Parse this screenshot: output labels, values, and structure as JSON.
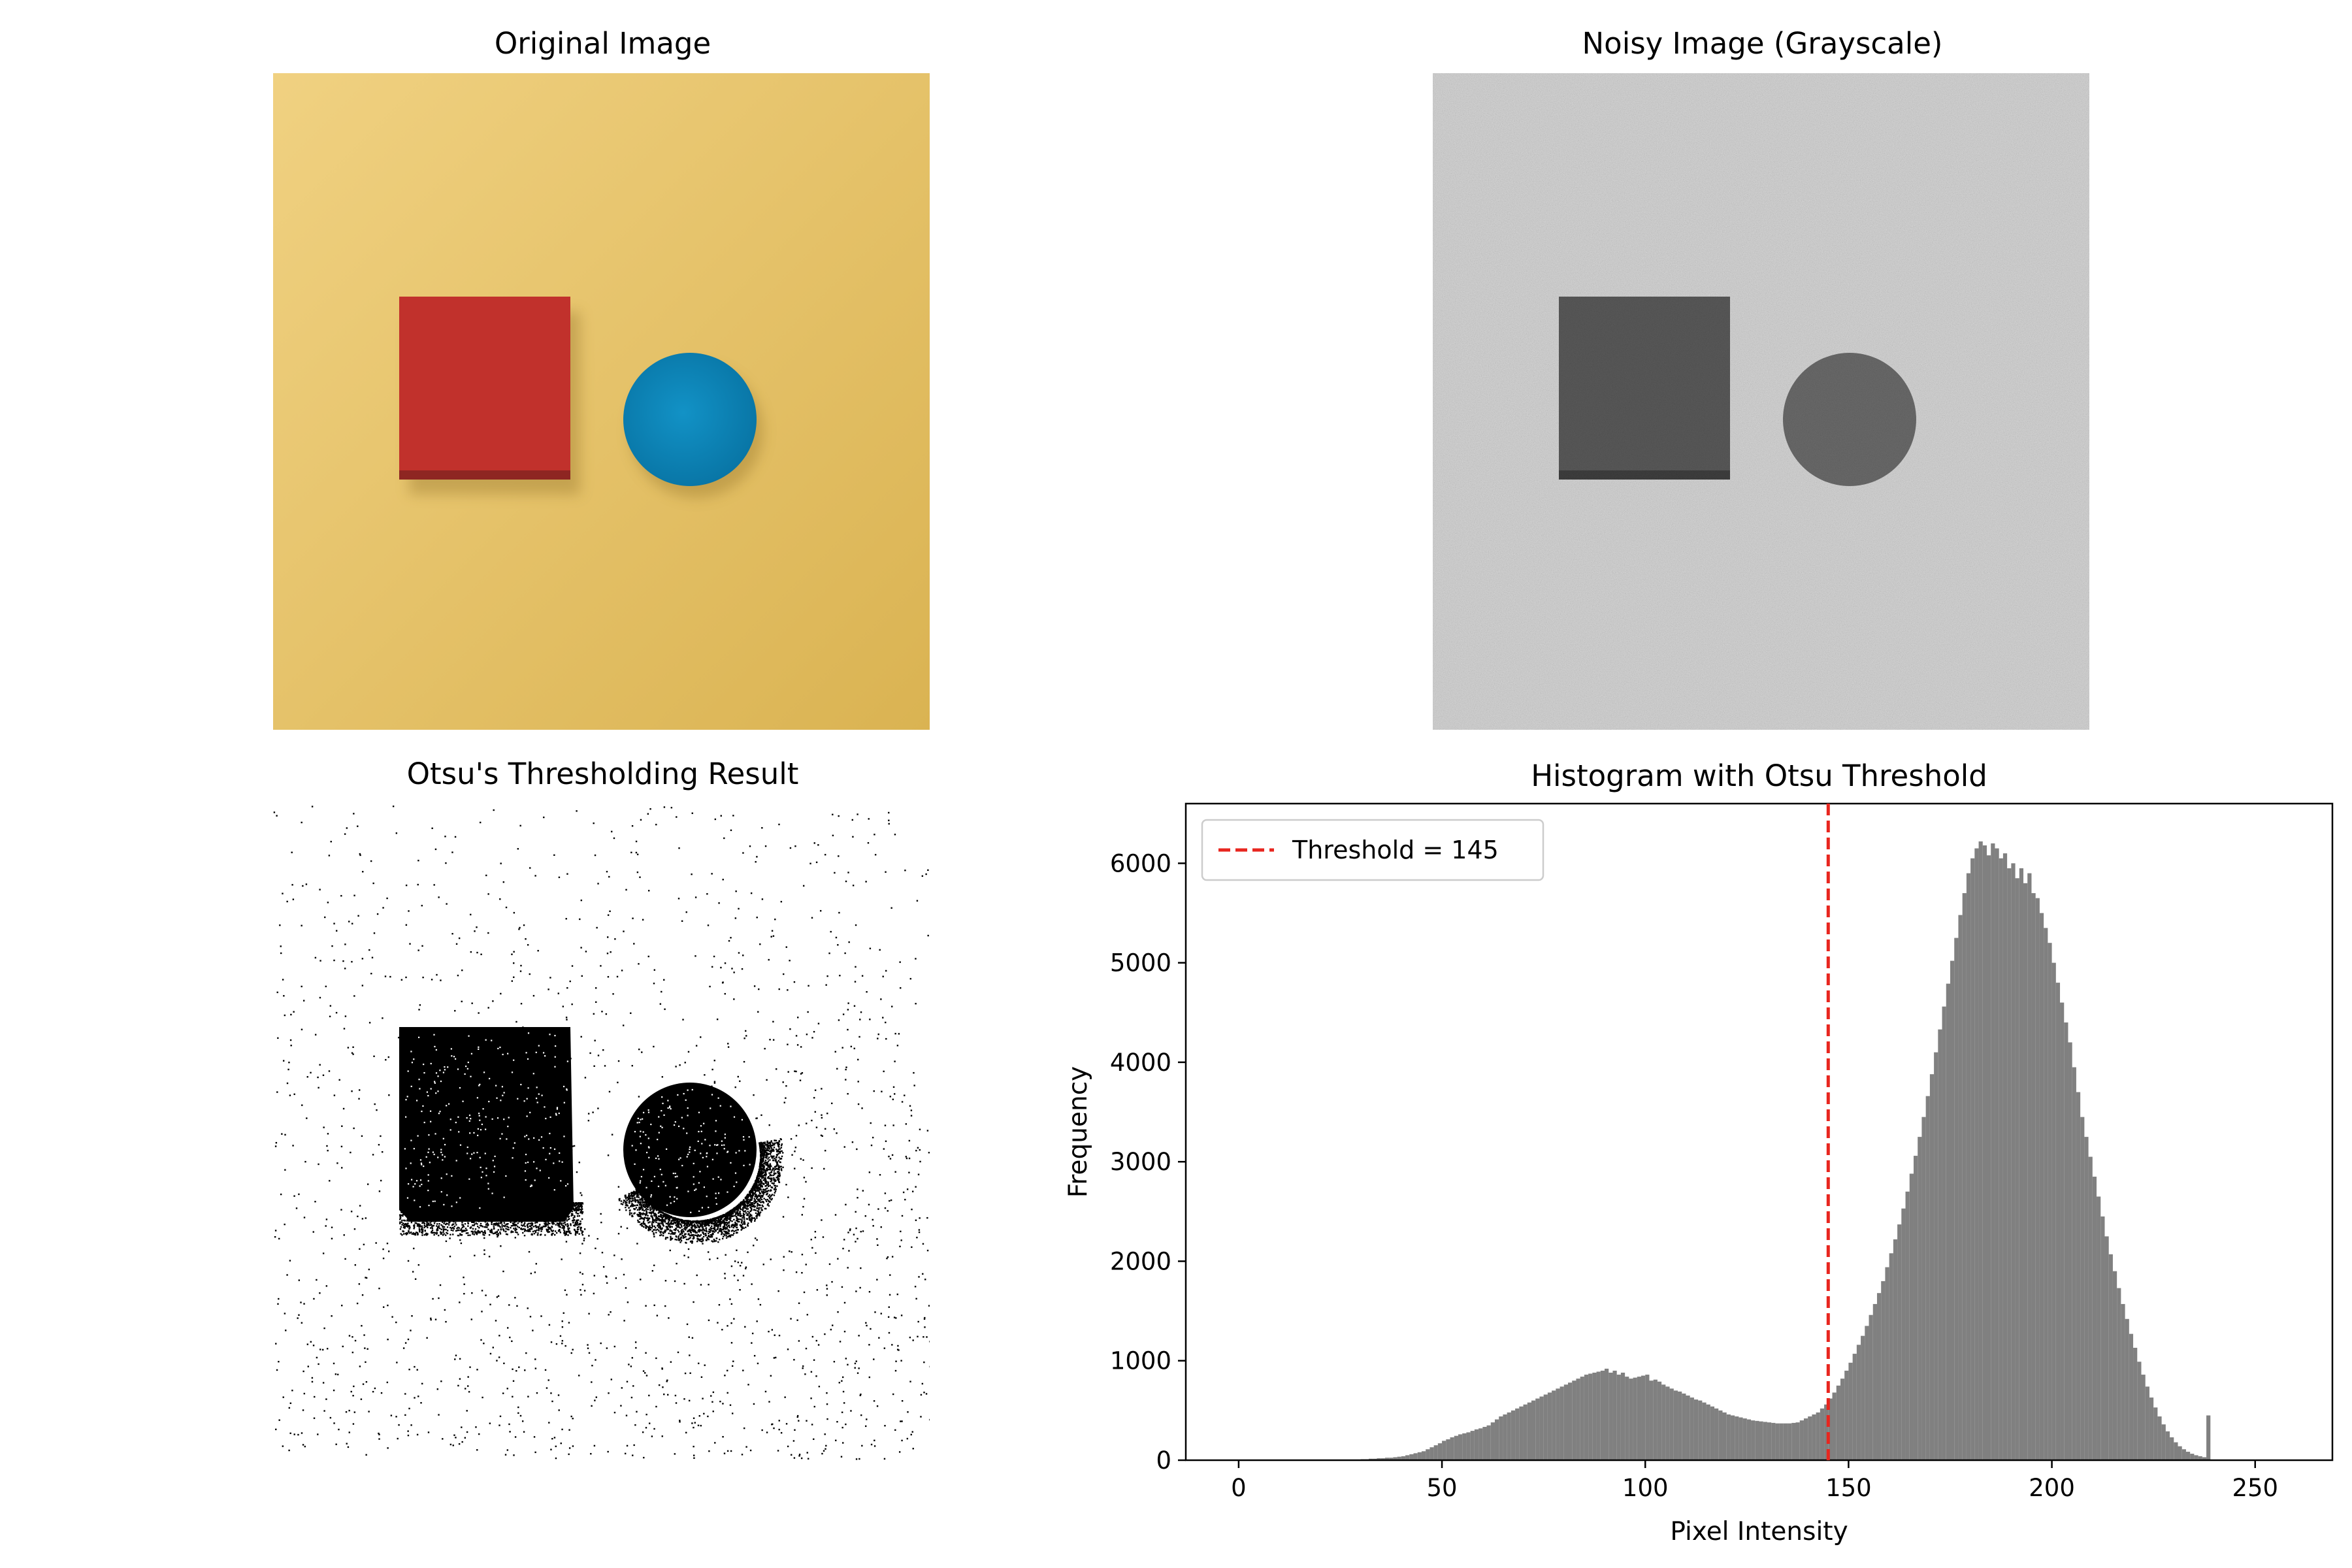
{
  "panels": {
    "original_title": "Original Image",
    "noisy_title": "Noisy Image (Grayscale)",
    "otsu_title": "Otsu's Thresholding Result",
    "hist_title": "Histogram with Otsu Threshold"
  },
  "colors": {
    "background_yellow": "#e6c165",
    "red_box": "#c1312c",
    "blue_disc": "#0a84b8",
    "noisy_bg": "#c4c4c4",
    "noisy_box": "#4f4f4f",
    "noisy_disc": "#5e5e5e",
    "hist_bar": "#808080",
    "threshold_line": "#e8261f"
  },
  "chart_data": [
    {
      "type": "bar",
      "title": "Histogram with Otsu Threshold",
      "xlabel": "Pixel Intensity",
      "ylabel": "Frequency",
      "xlim": [
        -13,
        269
      ],
      "ylim": [
        0,
        6600
      ],
      "xticks": [
        0,
        50,
        100,
        150,
        200,
        250
      ],
      "yticks": [
        0,
        1000,
        2000,
        3000,
        4000,
        5000,
        6000
      ],
      "grid": false,
      "legend_position": "top-left",
      "threshold": {
        "value": 145,
        "label": "Threshold = 145"
      },
      "bins_start": 0,
      "bin_width": 1,
      "values": [
        0,
        0,
        0,
        0,
        0,
        0,
        0,
        0,
        0,
        0,
        0,
        0,
        0,
        0,
        0,
        0,
        0,
        0,
        0,
        0,
        5,
        5,
        5,
        5,
        5,
        5,
        5,
        5,
        5,
        5,
        10,
        10,
        15,
        15,
        20,
        20,
        25,
        25,
        30,
        35,
        40,
        50,
        60,
        70,
        80,
        90,
        110,
        130,
        150,
        170,
        195,
        210,
        230,
        245,
        260,
        270,
        280,
        295,
        310,
        320,
        335,
        350,
        380,
        410,
        440,
        460,
        480,
        500,
        520,
        540,
        560,
        580,
        600,
        620,
        640,
        660,
        680,
        700,
        720,
        740,
        760,
        780,
        800,
        820,
        840,
        860,
        870,
        880,
        890,
        900,
        920,
        880,
        900,
        860,
        880,
        840,
        820,
        830,
        840,
        850,
        860,
        800,
        810,
        790,
        760,
        740,
        720,
        700,
        690,
        670,
        650,
        630,
        610,
        600,
        580,
        560,
        540,
        520,
        500,
        480,
        460,
        450,
        440,
        430,
        420,
        410,
        400,
        395,
        390,
        385,
        380,
        375,
        370,
        370,
        370,
        370,
        375,
        380,
        400,
        420,
        440,
        460,
        480,
        520,
        560,
        620,
        680,
        750,
        820,
        900,
        980,
        1070,
        1160,
        1250,
        1350,
        1460,
        1570,
        1680,
        1800,
        1940,
        2080,
        2220,
        2370,
        2530,
        2700,
        2880,
        3060,
        3250,
        3450,
        3660,
        3880,
        4100,
        4330,
        4560,
        4790,
        5020,
        5250,
        5480,
        5700,
        5900,
        6050,
        6150,
        6220,
        6180,
        6080,
        6200,
        6150,
        6050,
        6100,
        5950,
        6000,
        5850,
        5950,
        5800,
        5900,
        5700,
        5650,
        5500,
        5350,
        5200,
        5000,
        4800,
        4600,
        4400,
        4200,
        3950,
        3700,
        3450,
        3250,
        3050,
        2850,
        2650,
        2450,
        2250,
        2070,
        1900,
        1730,
        1570,
        1420,
        1270,
        1130,
        990,
        860,
        740,
        630,
        530,
        440,
        360,
        290,
        230,
        180,
        140,
        110,
        85,
        65,
        50,
        40,
        30,
        450
      ]
    }
  ]
}
